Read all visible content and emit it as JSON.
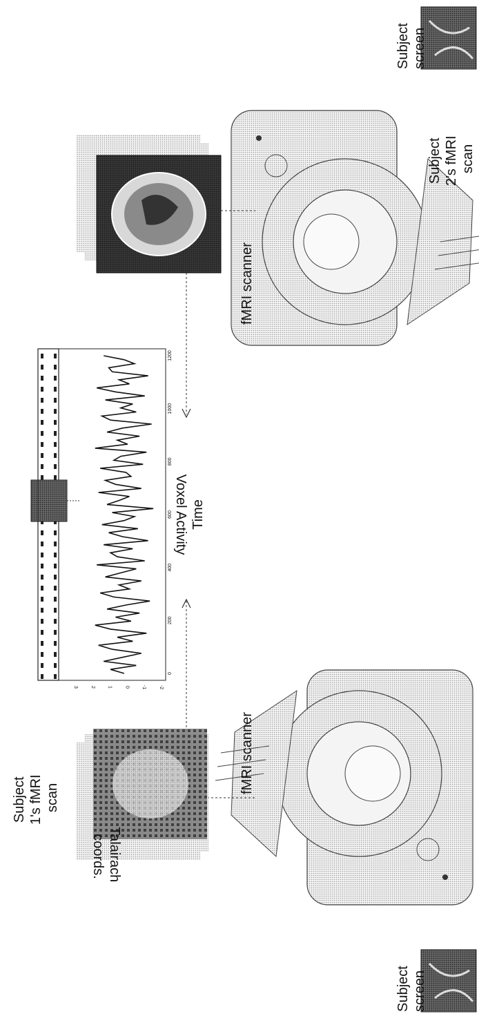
{
  "labels": {
    "subject_screen_top": [
      "Subject",
      "screen"
    ],
    "subject2_scan": [
      "Subject",
      "2's fMRI",
      "scan"
    ],
    "fmri_scanner_top": "fMRI scanner",
    "time": "Time",
    "voxel_activity": "Voxel Activity",
    "fmri_scanner_bottom": "fMRI scanner",
    "talairach": [
      "Talairach",
      "coords."
    ],
    "subject1_scan": [
      "Subject",
      "1's fMRI",
      "scan"
    ],
    "subject_screen_bottom": [
      "Subject",
      "screen"
    ]
  },
  "colors": {
    "ink": "#111111",
    "scanner_fill": "#e6e6e6",
    "screen_fill": "#555555",
    "scan_dark": "#1a1a1a"
  },
  "icons": {
    "scanner": "mri-scanner-icon",
    "screen": "subject-screen-icon",
    "brain_scan": "brain-scan-icon"
  },
  "chart_data": {
    "type": "line",
    "title": "",
    "xlabel": "Time",
    "ylabel": "Voxel Activity",
    "orientation": "rotated-90",
    "xlim": [
      0,
      1200
    ],
    "ylim": [
      -2,
      3
    ],
    "x_ticks": [
      "0",
      "200",
      "400",
      "600",
      "800",
      "1000",
      "1200"
    ],
    "y_ticks": [
      "-2",
      "-1",
      "0",
      "1",
      "2",
      "3"
    ],
    "series": [
      {
        "values": [
          0.1,
          0.9,
          -0.6,
          1.3,
          0.2,
          -0.9,
          0.8,
          1.6,
          -0.4,
          0.5,
          -1.2,
          0.9,
          1.8,
          -0.3,
          0.6,
          -0.8,
          1.1,
          0.0,
          -1.4,
          0.7,
          1.5,
          -0.2,
          0.4,
          -0.9,
          1.2,
          0.3,
          -0.6,
          1.7,
          -1.1,
          0.5,
          0.9,
          -0.4,
          1.3,
          -1.3,
          0.2,
          1.0,
          -0.7,
          1.4,
          0.1,
          -0.5,
          0.8,
          -1.6,
          1.1,
          0.4,
          -0.2,
          1.6,
          -0.9,
          0.6,
          1.2,
          -0.3,
          0.0,
          1.5,
          -1.0,
          0.7,
          0.3,
          -1.2,
          1.8,
          -0.1,
          0.5,
          -0.8,
          1.1,
          0.2,
          -1.5,
          0.9,
          1.4,
          -0.6,
          0.3,
          -0.4,
          1.2,
          -1.1,
          0.6,
          1.7,
          -0.2,
          0.4,
          -1.3,
          0.8,
          1.0,
          -0.5,
          0.1,
          1.3
        ]
      }
    ]
  }
}
